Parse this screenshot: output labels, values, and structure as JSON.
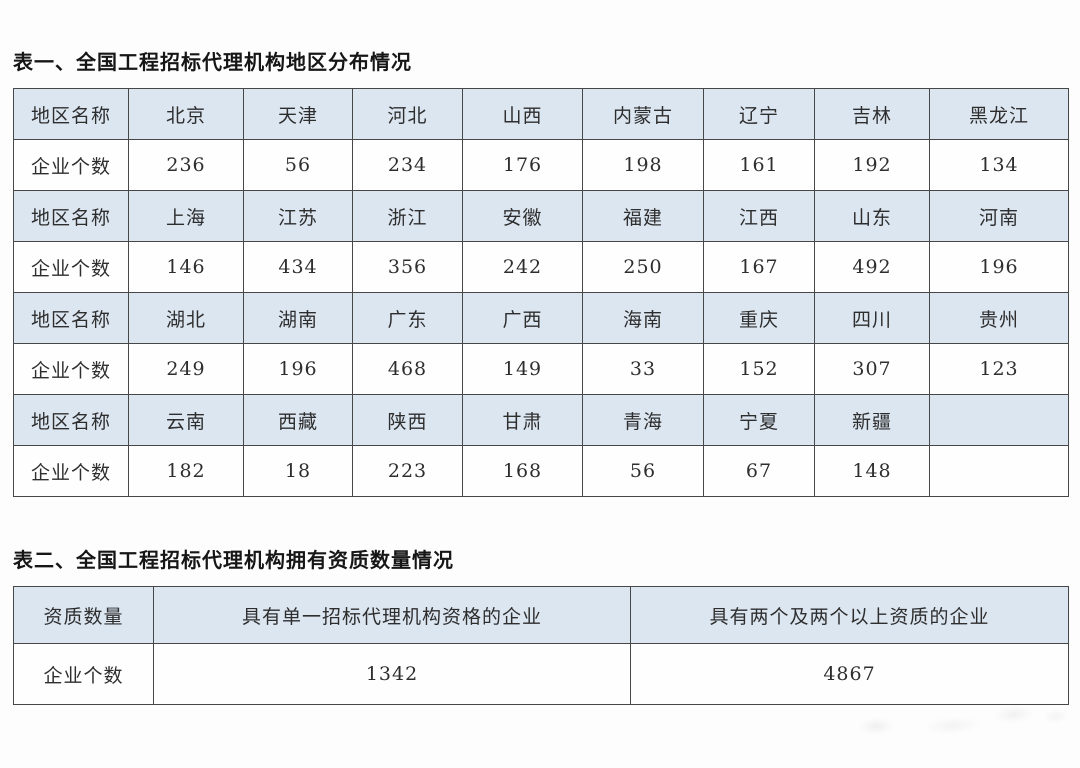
{
  "table1": {
    "title": "表一、全国工程招标代理机构地区分布情况",
    "region_label": "地区名称",
    "count_label": "企业个数",
    "groups": [
      {
        "regions": [
          "北京",
          "天津",
          "河北",
          "山西",
          "内蒙古",
          "辽宁",
          "吉林",
          "黑龙江"
        ],
        "counts": [
          "236",
          "56",
          "234",
          "176",
          "198",
          "161",
          "192",
          "134"
        ]
      },
      {
        "regions": [
          "上海",
          "江苏",
          "浙江",
          "安徽",
          "福建",
          "江西",
          "山东",
          "河南"
        ],
        "counts": [
          "146",
          "434",
          "356",
          "242",
          "250",
          "167",
          "492",
          "196"
        ]
      },
      {
        "regions": [
          "湖北",
          "湖南",
          "广东",
          "广西",
          "海南",
          "重庆",
          "四川",
          "贵州"
        ],
        "counts": [
          "249",
          "196",
          "468",
          "149",
          "33",
          "152",
          "307",
          "123"
        ]
      },
      {
        "regions": [
          "云南",
          "西藏",
          "陕西",
          "甘肃",
          "青海",
          "宁夏",
          "新疆",
          ""
        ],
        "counts": [
          "182",
          "18",
          "223",
          "168",
          "56",
          "67",
          "148",
          ""
        ]
      }
    ]
  },
  "table2": {
    "title": "表二、全国工程招标代理机构拥有资质数量情况",
    "headers": [
      "资质数量",
      "具有单一招标代理机构资格的企业",
      "具有两个及两个以上资质的企业"
    ],
    "row_label": "企业个数",
    "values": [
      "1342",
      "4867"
    ]
  },
  "colors": {
    "header_bg": "#dce6f1",
    "border": "#474747",
    "text": "#2e2e2e"
  }
}
